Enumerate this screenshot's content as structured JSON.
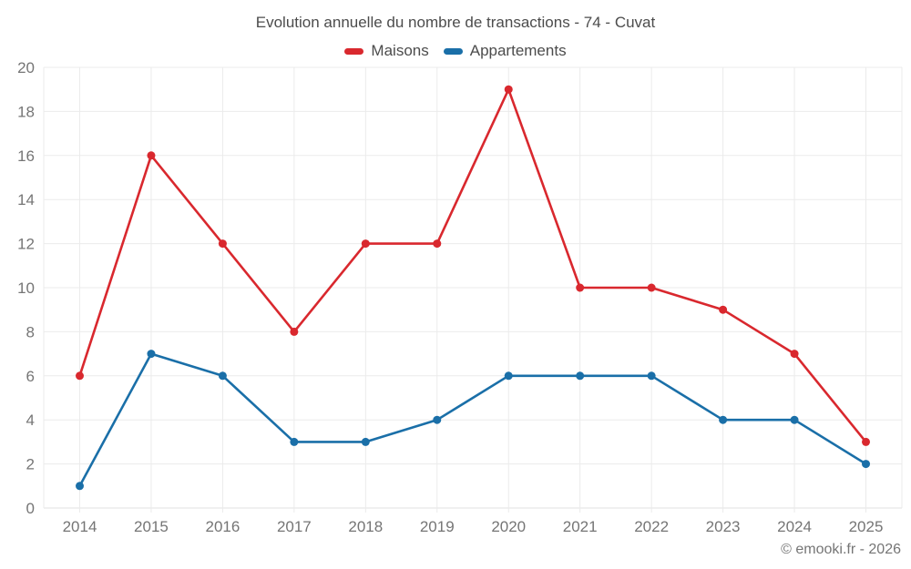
{
  "header": {
    "title": "Evolution annuelle du nombre de transactions - 74 - Cuvat"
  },
  "footer": {
    "credit": "© emooki.fr - 2026"
  },
  "colors": {
    "background": "#ffffff",
    "grid": "#ebebeb",
    "axis": "#e0e0e0",
    "tick_text": "#757575",
    "title_text": "#4c4c4c",
    "maisons_red": "#d9282e",
    "appartements_blue": "#1a6fa8"
  },
  "chart_data": {
    "type": "line",
    "title": "Evolution annuelle du nombre de transactions - 74 - Cuvat",
    "categories": [
      "2014",
      "2015",
      "2016",
      "2017",
      "2018",
      "2019",
      "2020",
      "2021",
      "2022",
      "2023",
      "2024",
      "2025"
    ],
    "series": [
      {
        "name": "Maisons",
        "color": "#d9282e",
        "values": [
          6,
          16,
          12,
          8,
          12,
          12,
          19,
          10,
          10,
          9,
          7,
          3
        ]
      },
      {
        "name": "Appartements",
        "color": "#1a6fa8",
        "values": [
          1,
          7,
          6,
          3,
          3,
          4,
          6,
          6,
          6,
          4,
          4,
          2
        ]
      }
    ],
    "xlabel": "",
    "ylabel": "",
    "ylim": [
      0,
      20
    ],
    "ytick_step": 2,
    "y_tick_labels": [
      "0",
      "2",
      "4",
      "6",
      "8",
      "10",
      "12",
      "14",
      "16",
      "18",
      "20"
    ],
    "grid": true,
    "legend_position": "top",
    "marker": "circle"
  }
}
